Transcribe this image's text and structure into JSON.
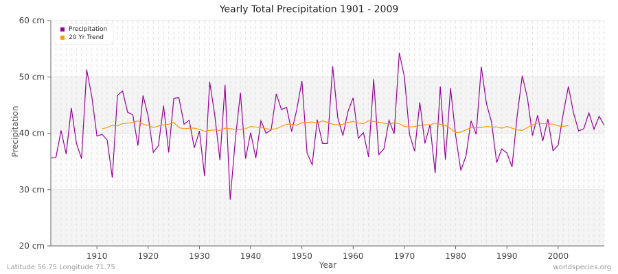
{
  "header": {
    "title": "Yearly Total Precipitation 1901 - 2009"
  },
  "axes": {
    "ylabel": "Precipitation",
    "xlabel": "Year",
    "yticks": [
      "60 cm",
      "50 cm",
      "40 cm",
      "30 cm",
      "20 cm"
    ],
    "xticks": [
      "1910",
      "1920",
      "1930",
      "1940",
      "1950",
      "1960",
      "1970",
      "1980",
      "1990",
      "2000"
    ]
  },
  "legend": {
    "items": [
      {
        "label": "Precipitation",
        "color": "#990099"
      },
      {
        "label": "20 Yr Trend",
        "color": "#ff9900"
      }
    ]
  },
  "footer": {
    "location": "Latitude 56.75 Longitude 71.75",
    "source": "worldspecies.org"
  },
  "chart_data": {
    "type": "line",
    "title": "Yearly Total Precipitation 1901 - 2009",
    "xlabel": "Year",
    "ylabel": "Precipitation",
    "ylim": [
      20,
      60
    ],
    "xlim": [
      1901,
      2009
    ],
    "units": "cm",
    "grid": true,
    "legend_position": "top-left",
    "x": [
      1901,
      1902,
      1903,
      1904,
      1905,
      1906,
      1907,
      1908,
      1909,
      1910,
      1911,
      1912,
      1913,
      1914,
      1915,
      1916,
      1917,
      1918,
      1919,
      1920,
      1921,
      1922,
      1923,
      1924,
      1925,
      1926,
      1927,
      1928,
      1929,
      1930,
      1931,
      1932,
      1933,
      1934,
      1935,
      1936,
      1937,
      1938,
      1939,
      1940,
      1941,
      1942,
      1943,
      1944,
      1945,
      1946,
      1947,
      1948,
      1949,
      1950,
      1951,
      1952,
      1953,
      1954,
      1955,
      1956,
      1957,
      1958,
      1959,
      1960,
      1961,
      1962,
      1963,
      1964,
      1965,
      1966,
      1967,
      1968,
      1969,
      1970,
      1971,
      1972,
      1973,
      1974,
      1975,
      1976,
      1977,
      1978,
      1979,
      1980,
      1981,
      1982,
      1983,
      1984,
      1985,
      1986,
      1987,
      1988,
      1989,
      1990,
      1991,
      1992,
      1993,
      1994,
      1995,
      1996,
      1997,
      1998,
      1999,
      2000,
      2001,
      2002,
      2003,
      2004,
      2005,
      2006,
      2007,
      2008,
      2009
    ],
    "series": [
      {
        "name": "Precipitation",
        "color": "#990099",
        "values": [
          35.6,
          35.7,
          40.5,
          36.3,
          44.5,
          38.2,
          35.5,
          51.3,
          46.5,
          39.5,
          39.8,
          38.8,
          32.1,
          46.7,
          47.5,
          43.7,
          43.3,
          37.8,
          46.7,
          43.0,
          36.6,
          37.8,
          44.9,
          36.6,
          46.2,
          46.3,
          41.6,
          42.3,
          37.4,
          40.4,
          32.4,
          49.1,
          43.2,
          35.2,
          48.6,
          28.2,
          38.8,
          47.2,
          35.5,
          40.1,
          35.6,
          42.2,
          40.0,
          40.6,
          47.0,
          44.2,
          44.6,
          40.3,
          44.2,
          49.3,
          36.5,
          34.4,
          42.4,
          38.2,
          38.2,
          51.9,
          42.7,
          39.6,
          43.9,
          46.3,
          39.1,
          40.1,
          35.8,
          49.6,
          36.2,
          37.2,
          42.3,
          39.9,
          54.3,
          50.0,
          39.8,
          36.8,
          45.5,
          38.2,
          41.5,
          32.9,
          48.3,
          35.3,
          48.0,
          39.6,
          33.4,
          35.9,
          42.2,
          39.8,
          51.8,
          45.3,
          42.0,
          34.8,
          37.2,
          36.5,
          34.0,
          43.1,
          50.2,
          46.3,
          39.6,
          43.2,
          38.6,
          42.5,
          36.9,
          37.9,
          43.5,
          48.3,
          43.6,
          40.4,
          40.8,
          43.6,
          40.7,
          43.0,
          41.4
        ]
      },
      {
        "name": "20 Yr Trend",
        "color": "#ff9900",
        "start_year": 1911,
        "values": [
          40.8,
          41.0,
          41.4,
          41.3,
          41.7,
          41.8,
          41.9,
          42.2,
          41.6,
          41.4,
          41.0,
          41.3,
          41.5,
          41.6,
          41.9,
          41.0,
          40.8,
          40.9,
          40.9,
          40.7,
          40.3,
          40.5,
          40.6,
          40.5,
          40.9,
          40.8,
          40.7,
          40.6,
          40.8,
          41.2,
          41.1,
          41.0,
          40.8,
          40.7,
          40.8,
          41.2,
          41.6,
          41.6,
          41.4,
          41.9,
          41.9,
          42.0,
          41.8,
          42.2,
          41.9,
          41.6,
          41.5,
          41.6,
          41.9,
          42.1,
          41.8,
          41.7,
          42.2,
          42.1,
          41.9,
          41.8,
          41.6,
          41.9,
          41.7,
          41.2,
          41.1,
          41.2,
          41.4,
          41.5,
          41.5,
          41.8,
          41.6,
          41.4,
          40.8,
          40.1,
          40.2,
          40.6,
          41.0,
          41.0,
          41.0,
          41.2,
          41.1,
          41.1,
          40.9,
          41.2,
          40.9,
          40.6,
          40.5,
          41.0,
          41.5,
          41.8,
          41.7,
          41.7,
          41.6,
          41.3,
          41.2,
          41.4
        ]
      }
    ]
  }
}
